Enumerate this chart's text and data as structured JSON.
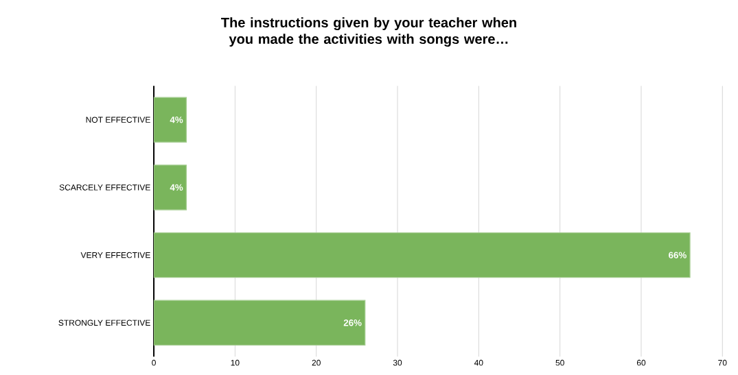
{
  "chart_data": {
    "type": "bar",
    "orientation": "horizontal",
    "title": "The instructions given by your teacher when you made the activities with songs were…",
    "categories": [
      "NOT EFFECTIVE",
      "SCARCELY EFFECTIVE",
      "VERY EFFECTIVE",
      "STRONGLY EFFECTIVE"
    ],
    "values": [
      4,
      4,
      66,
      26
    ],
    "value_labels": [
      "4%",
      "4%",
      "66%",
      "26%"
    ],
    "color": "#7ab55c",
    "xlim": [
      0,
      70
    ],
    "xticks": [
      0,
      10,
      20,
      30,
      40,
      50,
      60,
      70
    ],
    "grid": "x"
  }
}
